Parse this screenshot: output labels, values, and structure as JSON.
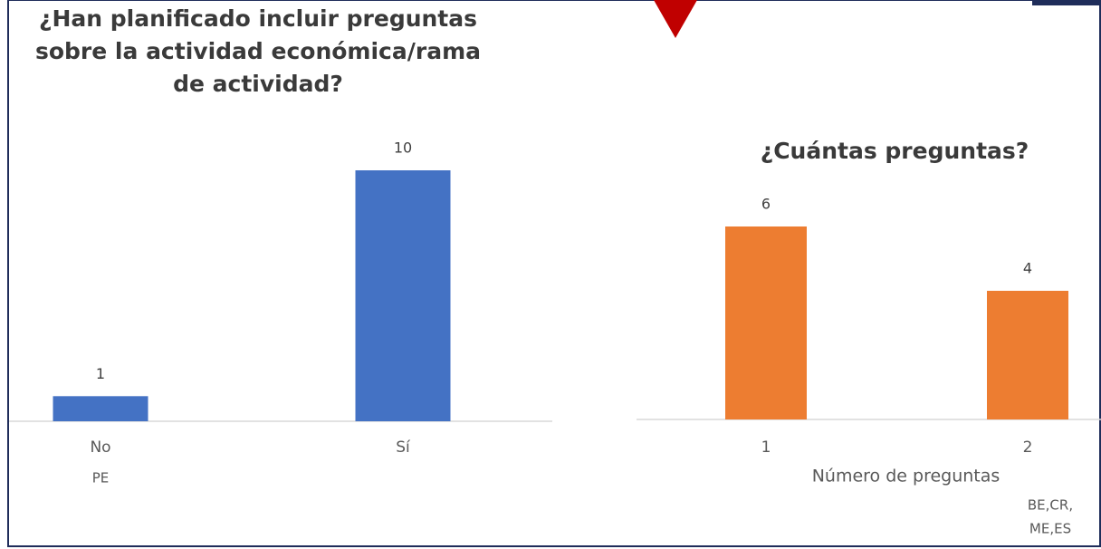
{
  "chart_data": [
    {
      "type": "bar",
      "title": [
        "¿Han planificado incluir preguntas",
        "sobre la actividad económica/rama",
        "de actividad?"
      ],
      "categories": [
        "No",
        "Sí"
      ],
      "values": [
        1,
        10
      ],
      "color": "#4472c4",
      "annotations": [
        "PE"
      ]
    },
    {
      "type": "bar",
      "title": [
        "¿Cuántas preguntas?"
      ],
      "categories": [
        "1",
        "2"
      ],
      "values": [
        6,
        4
      ],
      "color": "#ed7d31",
      "xlabel": "Número de preguntas",
      "annotations": [
        "BE,CR,",
        "ME,ES"
      ]
    }
  ]
}
